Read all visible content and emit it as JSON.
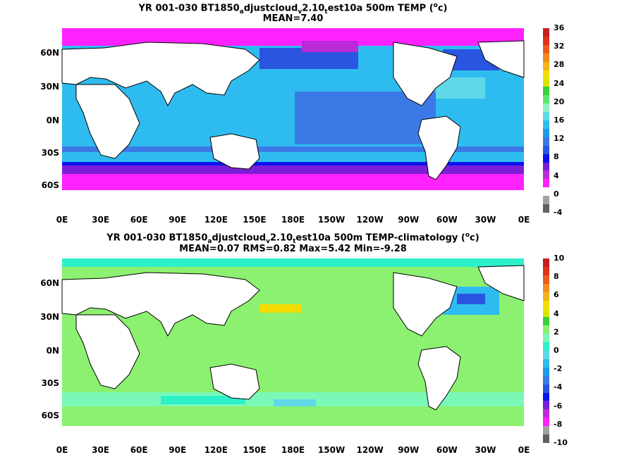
{
  "panels": [
    {
      "title_main": "YR 001-030 BT1850",
      "title_sub1": "a",
      "title_mid": "djustcloud",
      "title_sub2": "v",
      "title_mid2": "2.10",
      "title_sub3": "t",
      "title_end": "est10a 500m TEMP (",
      "title_sup": "o",
      "title_close": "c)",
      "stats": "MEAN=7.40",
      "colorbar_labels": [
        "36",
        "32",
        "28",
        "24",
        "20",
        "16",
        "12",
        "8",
        "4",
        "0",
        "-4"
      ],
      "colorbar_colors": [
        "#c41f1f",
        "#e0301e",
        "#ef5a1c",
        "#f28c22",
        "#f2b31a",
        "#f5dc00",
        "#d8e600",
        "#3ad13a",
        "#5ce86a",
        "#8ff3c0",
        "#5fd9e8",
        "#2ebcf0",
        "#1e9ae8",
        "#3b7ae6",
        "#2a55e0",
        "#0b12f0",
        "#7a1fd8",
        "#ba2ad8",
        "#ff22ff",
        "#ffffff",
        "#a0a0a0",
        "#606060"
      ]
    },
    {
      "title_main": "YR 001-030 BT1850",
      "title_sub1": "a",
      "title_mid": "djustcloud",
      "title_sub2": "v",
      "title_mid2": "2.10",
      "title_sub3": "t",
      "title_end": "est10a 500m TEMP-climatology (",
      "title_sup": "o",
      "title_close": "c)",
      "stats": "MEAN=0.07   RMS=0.82   Max=5.42   Min=-9.28",
      "colorbar_labels": [
        "10",
        "8",
        "6",
        "4",
        "2",
        "0",
        "-2",
        "-4",
        "-6",
        "-8",
        "-10"
      ],
      "colorbar_colors": [
        "#c41f1f",
        "#e0301e",
        "#ef5a1c",
        "#f28c22",
        "#f2b31a",
        "#f5dc00",
        "#d8e600",
        "#3ad13a",
        "#8cf070",
        "#7af8b8",
        "#2cf0c8",
        "#5fd9e8",
        "#2ebcf0",
        "#1e9ae8",
        "#3b7ae6",
        "#2a55e0",
        "#0b12f0",
        "#7a1fd8",
        "#ba2ad8",
        "#ff22ff",
        "#a0a0a0",
        "#606060"
      ]
    }
  ],
  "lat_labels": [
    "60N",
    "30N",
    "0N",
    "30S",
    "60S"
  ],
  "lon_labels": [
    "0E",
    "30E",
    "60E",
    "90E",
    "120E",
    "150E",
    "180E",
    "150W",
    "120W",
    "90W",
    "60W",
    "30W",
    "0E"
  ]
}
